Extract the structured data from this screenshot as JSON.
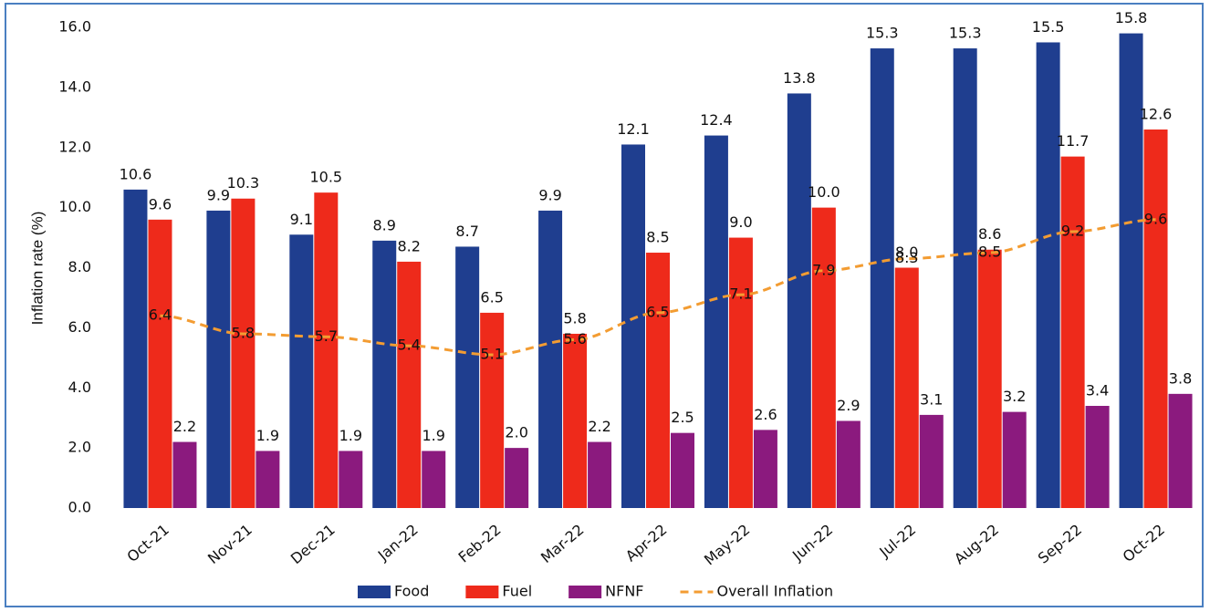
{
  "chart_data": {
    "type": "bar",
    "ylabel": "Inflation rate (%)",
    "categories": [
      "Oct-21",
      "Nov-21",
      "Dec-21",
      "Jan-22",
      "Feb-22",
      "Mar-22",
      "Apr-22",
      "May-22",
      "Jun-22",
      "Jul-22",
      "Aug-22",
      "Sep-22",
      "Oct-22"
    ],
    "series": [
      {
        "name": "Food",
        "color": "#1f3e8f",
        "type": "bar",
        "values": [
          10.6,
          9.9,
          9.1,
          8.9,
          8.7,
          9.9,
          12.1,
          12.4,
          13.8,
          15.3,
          15.3,
          15.5,
          15.8
        ],
        "value_labels": [
          "10.6",
          "9.9",
          "9.1",
          "8.9",
          "8.7",
          "9.9",
          "12.1",
          "12.4",
          "13.8",
          "15.3",
          "15.3",
          "15.5",
          "15.8"
        ]
      },
      {
        "name": "Fuel",
        "color": "#ee2a1b",
        "type": "bar",
        "values": [
          9.6,
          10.3,
          10.5,
          8.2,
          6.5,
          5.8,
          8.5,
          9.0,
          10.0,
          8.0,
          8.6,
          11.7,
          12.6
        ],
        "value_labels": [
          "9.6",
          "10.3",
          "10.5",
          "8.2",
          "6.5",
          "5.8",
          "8.5",
          "9.0",
          "10.0",
          "8.0",
          "8.6",
          "11.7",
          "12.6"
        ]
      },
      {
        "name": "NFNF",
        "color": "#8b1a7e",
        "type": "bar",
        "values": [
          2.2,
          1.9,
          1.9,
          1.9,
          2.0,
          2.2,
          2.5,
          2.6,
          2.9,
          3.1,
          3.2,
          3.4,
          3.8
        ],
        "value_labels": [
          "2.2",
          "1.9",
          "1.9",
          "1.9",
          "2.0",
          "2.2",
          "2.5",
          "2.6",
          "2.9",
          "3.1",
          "3.2",
          "3.4",
          "3.8"
        ]
      },
      {
        "name": "Overall Inflation",
        "color": "#f39c32",
        "type": "line",
        "dashed": true,
        "values": [
          6.4,
          5.8,
          5.7,
          5.4,
          5.1,
          5.6,
          6.5,
          7.1,
          7.9,
          8.3,
          8.5,
          9.2,
          9.6
        ],
        "value_labels": [
          "6.4",
          "5.8",
          "5.7",
          "5.4",
          "5.1",
          "5.6",
          "6.5",
          "7.1",
          "7.9",
          "8.3",
          "8.5",
          "9.2",
          "9.6"
        ]
      }
    ],
    "ylim": [
      0,
      16
    ],
    "yticks": [
      {
        "value": 0,
        "label": "0.0"
      },
      {
        "value": 2,
        "label": "2.0"
      },
      {
        "value": 4,
        "label": "4.0"
      },
      {
        "value": 6,
        "label": "6.0"
      },
      {
        "value": 8,
        "label": "8.0"
      },
      {
        "value": 10,
        "label": "10.0"
      },
      {
        "value": 12,
        "label": "12.0"
      },
      {
        "value": 14,
        "label": "14.0"
      },
      {
        "value": 16,
        "label": "16.0"
      }
    ],
    "grid": false,
    "legend": "bottom"
  }
}
